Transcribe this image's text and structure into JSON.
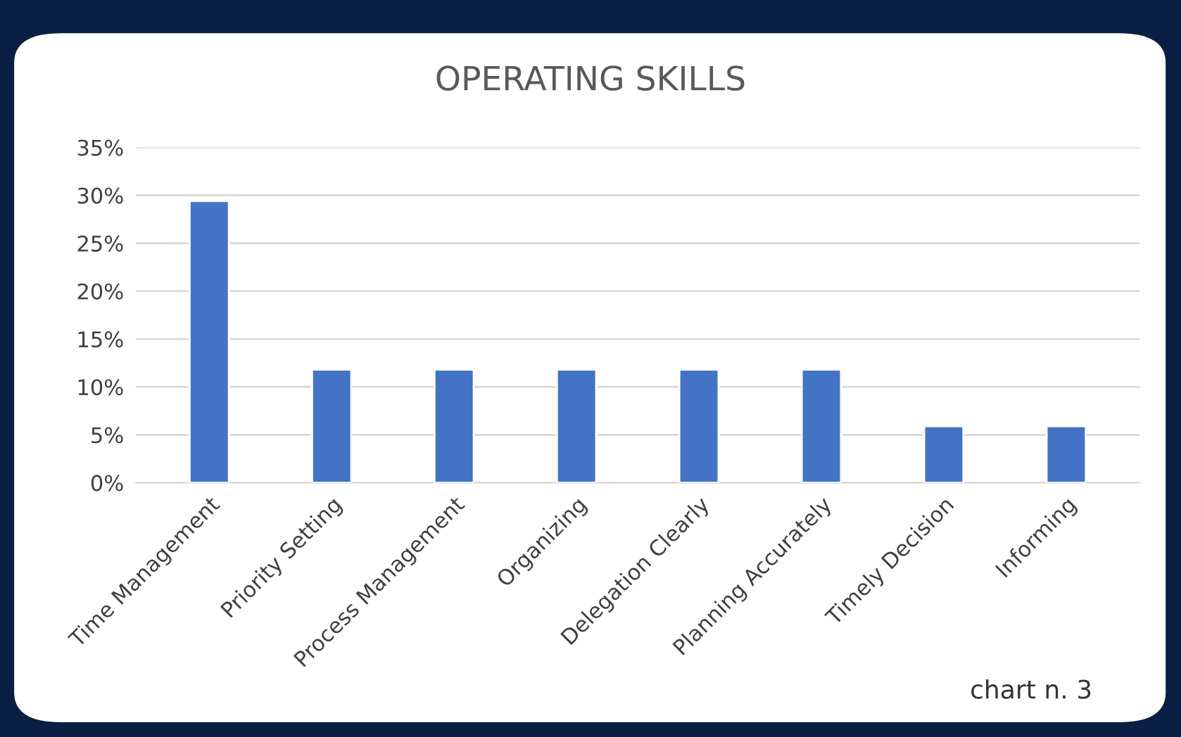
{
  "chart_data": {
    "type": "bar",
    "title": "OPERATING SKILLS",
    "categories": [
      "Time Management",
      "Priority Setting",
      "Process Management",
      "Organizing",
      "Delegation Clearly",
      "Planning Accurately",
      "Timely Decision",
      "Informing"
    ],
    "values": [
      29.4,
      11.8,
      11.8,
      11.8,
      11.8,
      11.8,
      5.9,
      5.9
    ],
    "color": "#4472c4",
    "ylim": [
      0,
      35
    ],
    "yticks": [
      {
        "value": 0,
        "label": "0%"
      },
      {
        "value": 5,
        "label": "5%"
      },
      {
        "value": 10,
        "label": "10%"
      },
      {
        "value": 15,
        "label": "15%"
      },
      {
        "value": 20,
        "label": "20%"
      },
      {
        "value": 25,
        "label": "25%"
      },
      {
        "value": 30,
        "label": "30%"
      },
      {
        "value": 35,
        "label": "35%"
      }
    ],
    "grid": "y",
    "annotations": [
      "chart n. 3"
    ]
  }
}
